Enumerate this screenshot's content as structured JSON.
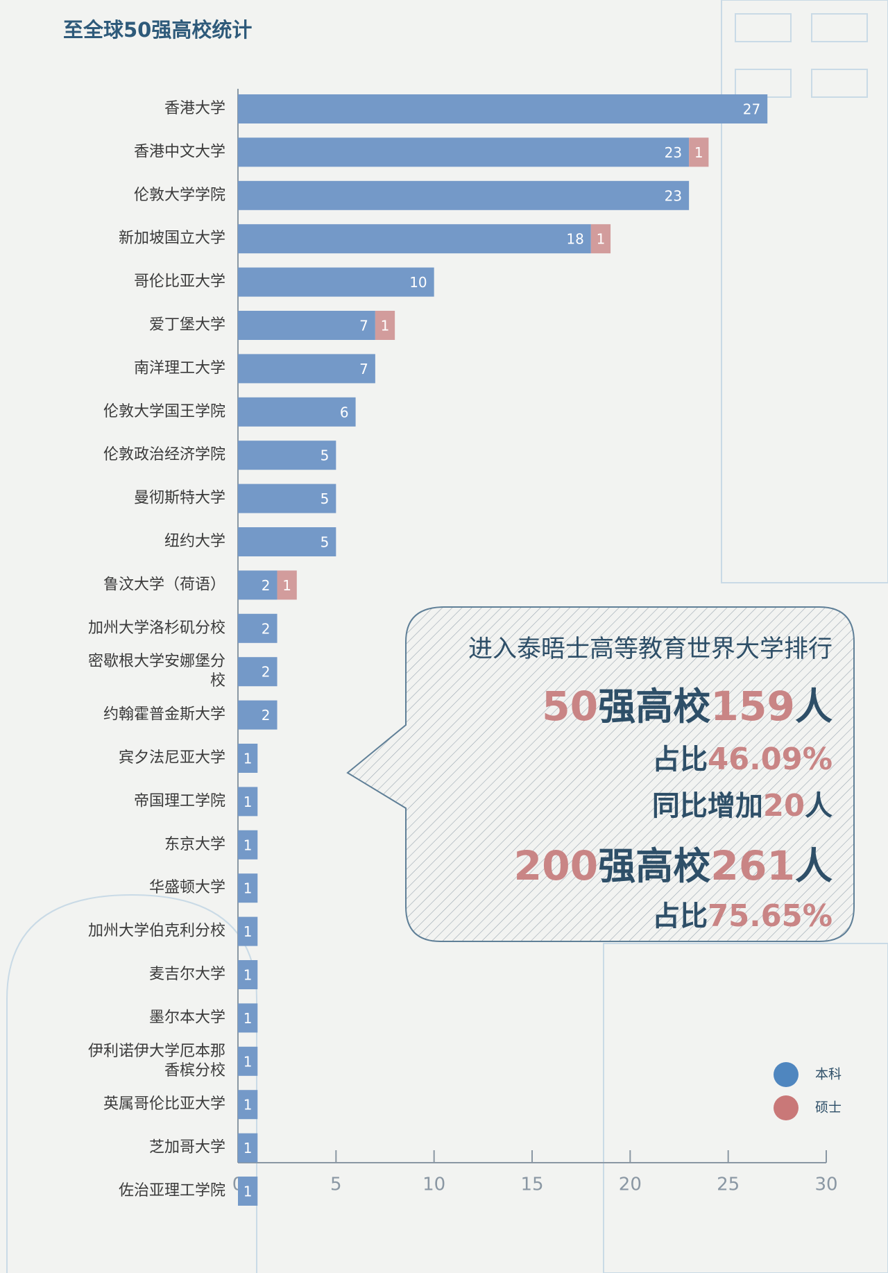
{
  "chart_data": {
    "type": "stacked-barh",
    "title": "至全球50强高校统计",
    "categories": [
      "香港大学",
      "香港中文大学",
      "伦敦大学学院",
      "新加坡国立大学",
      "哥伦比亚大学",
      "爱丁堡大学",
      "南洋理工大学",
      "伦敦大学国王学院",
      "伦敦政治经济学院",
      "曼彻斯特大学",
      "纽约大学",
      "鲁汶大学（荷语）",
      "加州大学洛杉矶分校",
      "密歇根大学安娜堡分校",
      "约翰霍普金斯大学",
      "宾夕法尼亚大学",
      "帝国理工学院",
      "东京大学",
      "华盛顿大学",
      "加州大学伯克利分校",
      "麦吉尔大学",
      "墨尔本大学",
      "伊利诺伊大学厄本那香槟分校",
      "英属哥伦比亚大学",
      "芝加哥大学",
      "佐治亚理工学院"
    ],
    "series": [
      {
        "name": "本科",
        "color": "#7499c8",
        "legend_color": "#4f86bf",
        "values": [
          27,
          23,
          23,
          18,
          10,
          7,
          7,
          6,
          5,
          5,
          5,
          2,
          2,
          2,
          2,
          1,
          1,
          1,
          1,
          1,
          1,
          1,
          1,
          1,
          1,
          1
        ]
      },
      {
        "name": "硕士",
        "color": "#d29c9c",
        "legend_color": "#c97878",
        "values": [
          null,
          1,
          null,
          1,
          null,
          1,
          null,
          null,
          null,
          null,
          null,
          1,
          null,
          null,
          null,
          null,
          null,
          null,
          null,
          null,
          null,
          null,
          null,
          null,
          null,
          null
        ]
      }
    ],
    "xlim": [
      0,
      30
    ],
    "xticks": [
      0,
      5,
      10,
      15,
      20,
      25,
      30
    ],
    "legend": "bottom-right",
    "annotation": {
      "heading": "进入泰晤士高等教育世界大学排行",
      "lines": [
        [
          {
            "text": "50",
            "color": "#c98585"
          },
          {
            "text": "强高校",
            "color": "#2e4f68"
          },
          {
            "text": "159",
            "color": "#c98585"
          },
          {
            "text": "人",
            "color": "#2e4f68"
          }
        ],
        [
          {
            "text": "占比",
            "color": "#2e4f68"
          },
          {
            "text": "46.09%",
            "color": "#c98585"
          }
        ],
        [
          {
            "text": "同比增加",
            "color": "#2e4f68"
          },
          {
            "text": "20",
            "color": "#c98585"
          },
          {
            "text": "人",
            "color": "#2e4f68"
          }
        ],
        [
          {
            "text": "200",
            "color": "#c98585"
          },
          {
            "text": "强高校",
            "color": "#2e4f68"
          },
          {
            "text": "261",
            "color": "#c98585"
          },
          {
            "text": "人",
            "color": "#2e4f68"
          }
        ],
        [
          {
            "text": "占比",
            "color": "#2e4f68"
          },
          {
            "text": "75.65%",
            "color": "#c98585"
          }
        ]
      ]
    }
  }
}
